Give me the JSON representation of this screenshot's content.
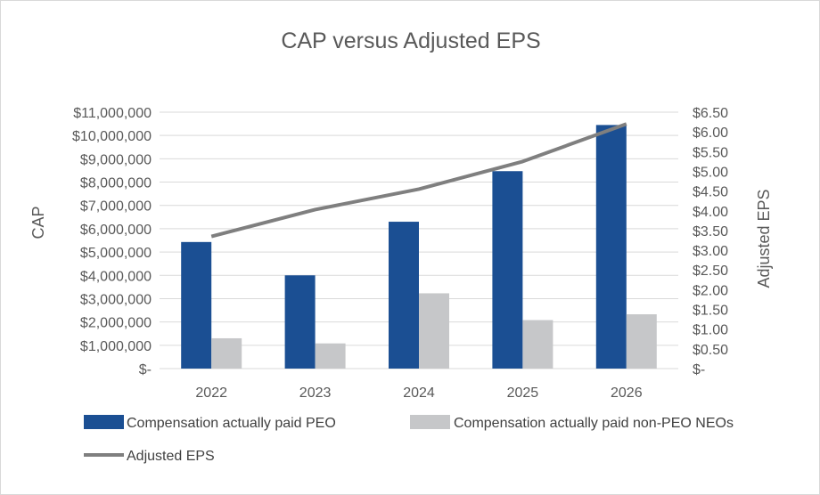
{
  "chart_data": {
    "type": "bar",
    "title": "CAP versus Adjusted EPS",
    "categories": [
      "2022",
      "2023",
      "2024",
      "2025",
      "2026"
    ],
    "series": [
      {
        "name": "Compensation actually paid PEO",
        "type": "bar",
        "axis": "left",
        "color": "#1b4f93",
        "values": [
          5430000,
          4000000,
          6300000,
          8470000,
          10450000
        ]
      },
      {
        "name": "Compensation actually paid non-PEO NEOs",
        "type": "bar",
        "axis": "left",
        "color": "#c6c7c9",
        "values": [
          1300000,
          1080000,
          3230000,
          2080000,
          2330000
        ]
      },
      {
        "name": "Adjusted EPS",
        "type": "line",
        "axis": "right",
        "color": "#7f7f7f",
        "values": [
          3.35,
          4.03,
          4.55,
          5.25,
          6.2
        ]
      }
    ],
    "ylabel": "CAP",
    "ylabel_right": "Adjusted EPS",
    "ylim": [
      0,
      11000000
    ],
    "ylim_right": [
      0,
      6.5
    ],
    "yticks": [
      "$-",
      "$1,000,000",
      "$2,000,000",
      "$3,000,000",
      "$4,000,000",
      "$5,000,000",
      "$6,000,000",
      "$7,000,000",
      "$8,000,000",
      "$9,000,000",
      "$10,000,000",
      "$11,000,000"
    ],
    "yticks_right": [
      "$-",
      "$0.50",
      "$1.00",
      "$1.50",
      "$2.00",
      "$2.50",
      "$3.00",
      "$3.50",
      "$4.00",
      "$4.50",
      "$5.00",
      "$5.50",
      "$6.00",
      "$6.50"
    ],
    "grid": true,
    "legend_position": "bottom"
  }
}
